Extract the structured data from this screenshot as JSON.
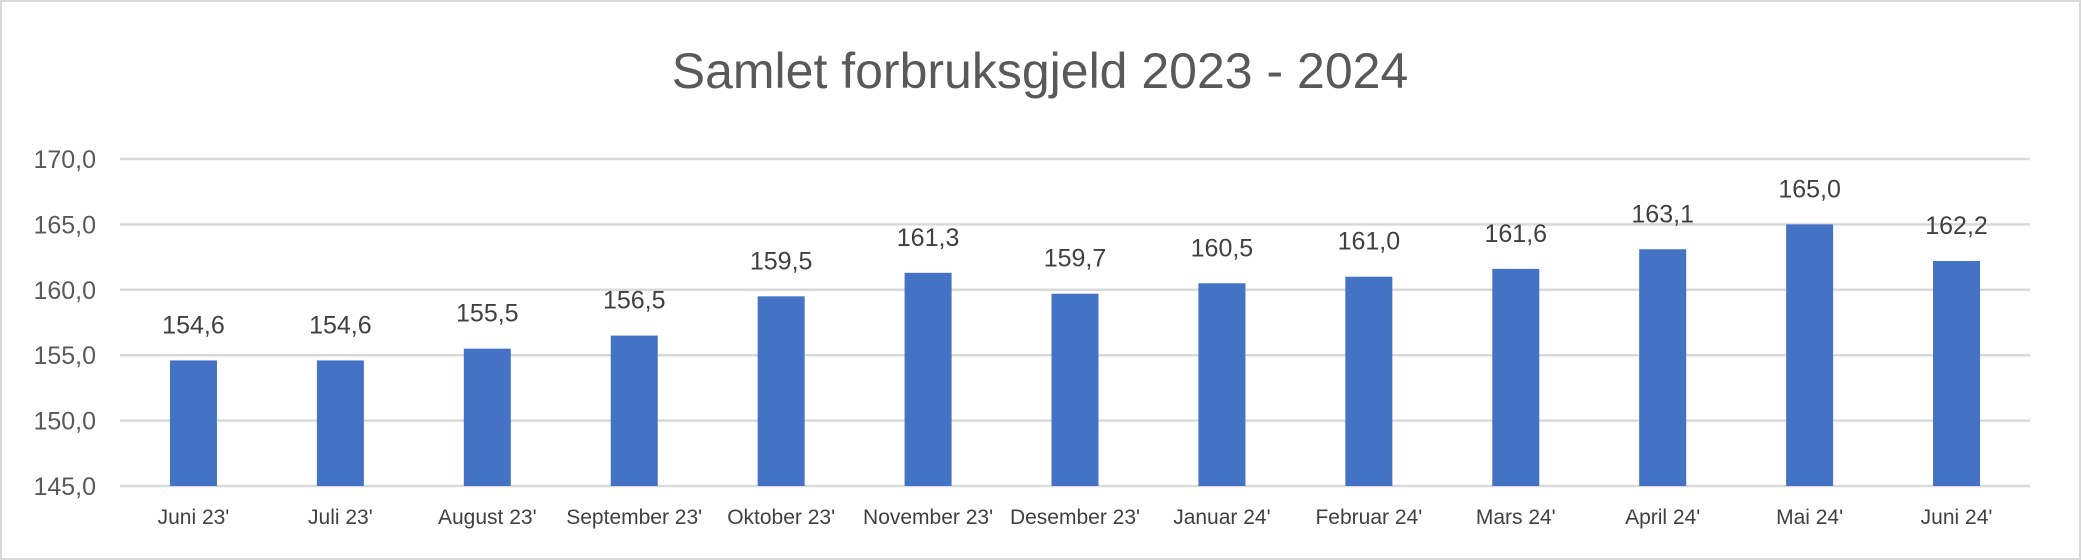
{
  "chart_data": {
    "type": "bar",
    "title": "Samlet forbruksgjeld 2023 - 2024",
    "xlabel": "",
    "ylabel": "",
    "ylim": [
      145,
      170
    ],
    "yticks": [
      "145,0",
      "150,0",
      "155,0",
      "160,0",
      "165,0",
      "170,0"
    ],
    "categories": [
      "Juni 23'",
      "Juli 23'",
      "August 23'",
      "September 23'",
      "Oktober 23'",
      "November 23'",
      "Desember 23'",
      "Januar 24'",
      "Februar 24'",
      "Mars 24'",
      "April 24'",
      "Mai 24'",
      "Juni 24'"
    ],
    "values": [
      154.6,
      154.6,
      155.5,
      156.5,
      159.5,
      161.3,
      159.7,
      160.5,
      161.0,
      161.6,
      163.1,
      165.0,
      162.2
    ],
    "data_labels": [
      "154,6",
      "154,6",
      "155,5",
      "156,5",
      "159,5",
      "161,3",
      "159,7",
      "160,5",
      "161,0",
      "161,6",
      "163,1",
      "165,0",
      "162,2"
    ],
    "grid": true,
    "legend": "none",
    "bar_color": "#4472C4"
  }
}
